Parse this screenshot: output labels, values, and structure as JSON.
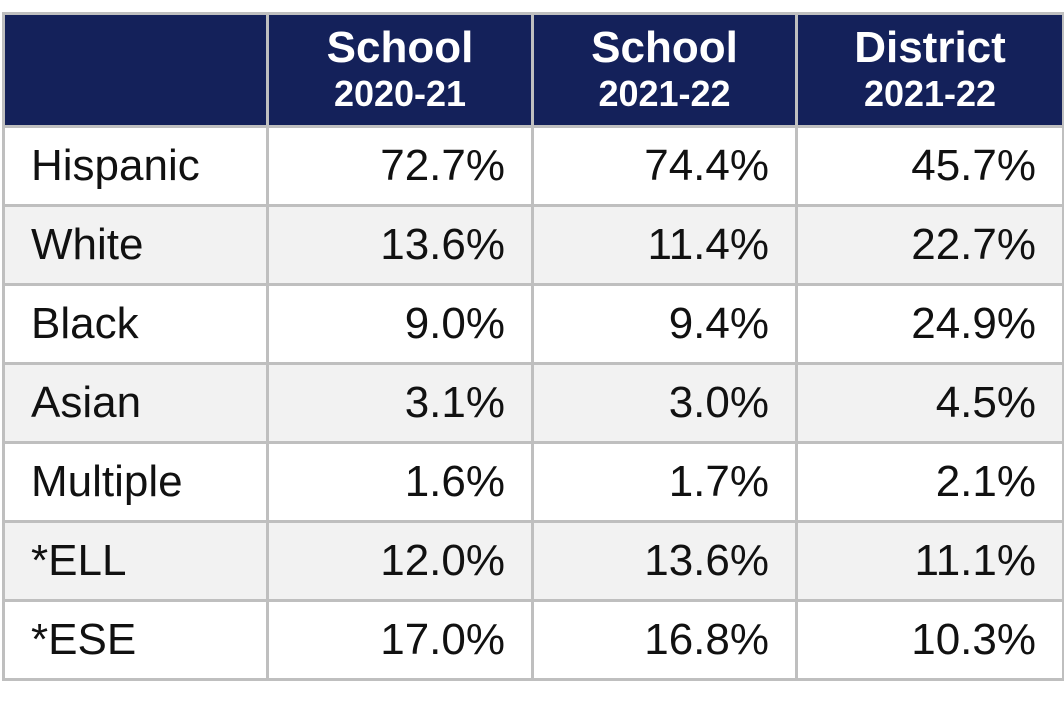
{
  "table": {
    "columns": [
      {
        "title": "School",
        "period": "2020-21"
      },
      {
        "title": "School",
        "period": "2021-22"
      },
      {
        "title": "District",
        "period": "2021-22"
      }
    ],
    "rows": [
      {
        "label": "Hispanic",
        "values": [
          "72.7%",
          "74.4%",
          "45.7%"
        ]
      },
      {
        "label": "White",
        "values": [
          "13.6%",
          "11.4%",
          "22.7%"
        ]
      },
      {
        "label": "Black",
        "values": [
          "9.0%",
          "9.4%",
          "24.9%"
        ]
      },
      {
        "label": "Asian",
        "values": [
          "3.1%",
          "3.0%",
          "4.5%"
        ]
      },
      {
        "label": "Multiple",
        "values": [
          "1.6%",
          "1.7%",
          "2.1%"
        ]
      },
      {
        "label": "*ELL",
        "values": [
          "12.0%",
          "13.6%",
          "11.1%"
        ]
      },
      {
        "label": "*ESE",
        "values": [
          "17.0%",
          "16.8%",
          "10.3%"
        ]
      }
    ]
  }
}
